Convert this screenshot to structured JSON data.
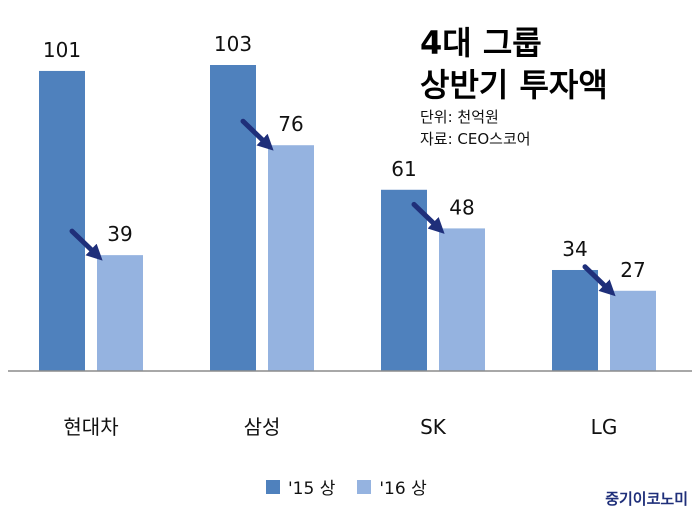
{
  "title": {
    "line1": "4대 그룹",
    "line2": "상반기 투자액",
    "unit": "단위: 천억원",
    "source": "자료: CEO스코어"
  },
  "chart_data": {
    "type": "bar",
    "categories": [
      "현대차",
      "삼성",
      "SK",
      "LG"
    ],
    "series": [
      {
        "name": "'15 상",
        "values": [
          101,
          103,
          61,
          34
        ],
        "color": "#4f81bd"
      },
      {
        "name": "'16 상",
        "values": [
          39,
          76,
          48,
          27
        ],
        "color": "#95b3e0"
      }
    ],
    "ylim": [
      0,
      103
    ],
    "grid": false,
    "legend_position": "bottom",
    "annotations": "decrease arrows from '15 bar to '16 bar",
    "arrow_color": "#1f2f7a"
  },
  "legend": {
    "series1": "'15 상",
    "series2": "'16 상"
  },
  "brand": "중기이코노미"
}
